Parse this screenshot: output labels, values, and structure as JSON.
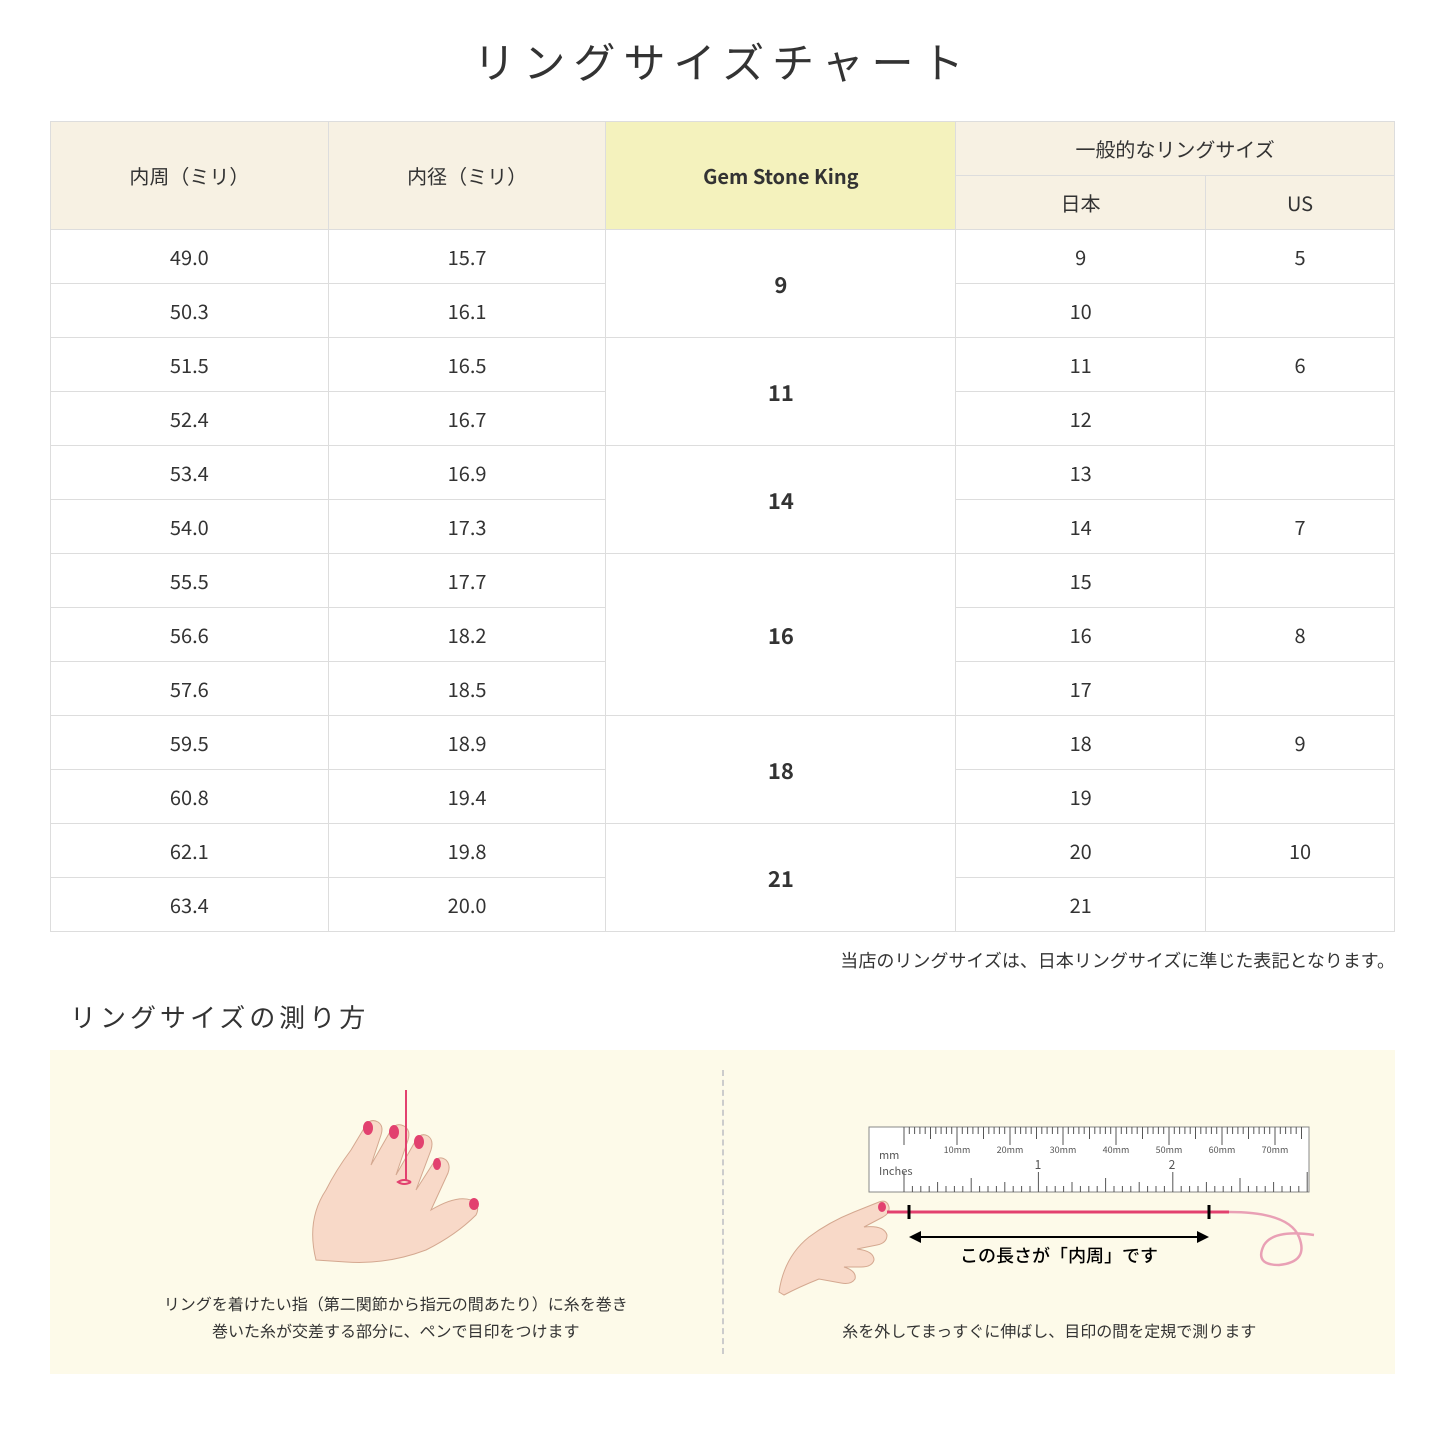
{
  "title": "リングサイズチャート",
  "headers": {
    "circumference": "内周（ミリ）",
    "diameter": "内径（ミリ）",
    "gsk": "Gem Stone King",
    "general": "一般的なリングサイズ",
    "japan": "日本",
    "us": "US"
  },
  "rows": [
    {
      "circ": "49.0",
      "dia": "15.7",
      "gsk": "9",
      "gsk_span": 2,
      "jp": "9",
      "us": "5"
    },
    {
      "circ": "50.3",
      "dia": "16.1",
      "jp": "10",
      "us": ""
    },
    {
      "circ": "51.5",
      "dia": "16.5",
      "gsk": "11",
      "gsk_span": 2,
      "jp": "11",
      "us": "6"
    },
    {
      "circ": "52.4",
      "dia": "16.7",
      "jp": "12",
      "us": ""
    },
    {
      "circ": "53.4",
      "dia": "16.9",
      "gsk": "14",
      "gsk_span": 2,
      "jp": "13",
      "us": ""
    },
    {
      "circ": "54.0",
      "dia": "17.3",
      "jp": "14",
      "us": "7"
    },
    {
      "circ": "55.5",
      "dia": "17.7",
      "gsk": "16",
      "gsk_span": 3,
      "jp": "15",
      "us": ""
    },
    {
      "circ": "56.6",
      "dia": "18.2",
      "jp": "16",
      "us": "8"
    },
    {
      "circ": "57.6",
      "dia": "18.5",
      "jp": "17",
      "us": ""
    },
    {
      "circ": "59.5",
      "dia": "18.9",
      "gsk": "18",
      "gsk_span": 2,
      "jp": "18",
      "us": "9"
    },
    {
      "circ": "60.8",
      "dia": "19.4",
      "jp": "19",
      "us": ""
    },
    {
      "circ": "62.1",
      "dia": "19.8",
      "gsk": "21",
      "gsk_span": 2,
      "jp": "20",
      "us": "10"
    },
    {
      "circ": "63.4",
      "dia": "20.0",
      "jp": "21",
      "us": ""
    }
  ],
  "note": "当店のリングサイズは、日本リングサイズに準じた表記となります。",
  "howto": {
    "title": "リングサイズの測り方",
    "left_caption": "リングを着けたい指（第二関節から指元の間あたり）に糸を巻き\n巻いた糸が交差する部分に、ペンで目印をつけます",
    "right_arrow_label": "この長さが「内周」です",
    "right_caption": "糸を外してまっすぐに伸ばし、目印の間を定規で測ります",
    "ruler_mm_label": "mm",
    "ruler_inches_label": "Inches",
    "ruler_mm_marks": [
      "10mm",
      "20mm",
      "30mm",
      "40mm",
      "50mm",
      "60mm",
      "70mm"
    ],
    "ruler_inch_marks": [
      "1",
      "2"
    ]
  },
  "colors": {
    "header_bg": "#f7f1e3",
    "highlight_bg": "#f4f2bd",
    "howto_bg": "#fdfae9",
    "border": "#dddddd",
    "thread": "#e2416f",
    "skin": "#f8d9c8",
    "nail": "#e2416f"
  }
}
